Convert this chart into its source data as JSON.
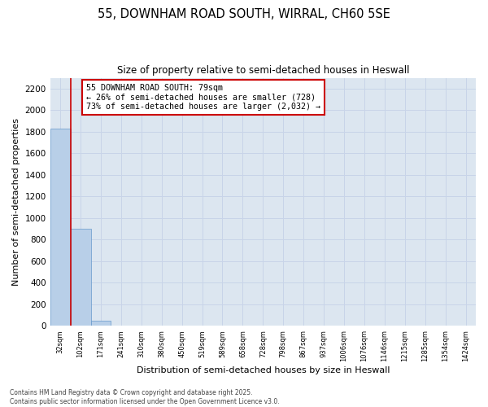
{
  "title_line1": "55, DOWNHAM ROAD SOUTH, WIRRAL, CH60 5SE",
  "title_line2": "Size of property relative to semi-detached houses in Heswall",
  "xlabel": "Distribution of semi-detached houses by size in Heswall",
  "ylabel": "Number of semi-detached properties",
  "bar_labels": [
    "32sqm",
    "102sqm",
    "171sqm",
    "241sqm",
    "310sqm",
    "380sqm",
    "450sqm",
    "519sqm",
    "589sqm",
    "658sqm",
    "728sqm",
    "798sqm",
    "867sqm",
    "937sqm",
    "1006sqm",
    "1076sqm",
    "1146sqm",
    "1215sqm",
    "1285sqm",
    "1354sqm",
    "1424sqm"
  ],
  "bar_values": [
    1830,
    900,
    50,
    5,
    2,
    1,
    1,
    0,
    0,
    0,
    0,
    0,
    0,
    0,
    0,
    0,
    0,
    0,
    0,
    0,
    0
  ],
  "bar_color": "#b8cfe8",
  "bar_edge_color": "#6699cc",
  "vline_color": "#cc0000",
  "vline_x": 0.5,
  "annotation_title": "55 DOWNHAM ROAD SOUTH: 79sqm",
  "annotation_line2": "← 26% of semi-detached houses are smaller (728)",
  "annotation_line3": "73% of semi-detached houses are larger (2,032) →",
  "annotation_box_color": "#ffffff",
  "annotation_box_edge": "#cc0000",
  "ylim": [
    0,
    2300
  ],
  "yticks": [
    0,
    200,
    400,
    600,
    800,
    1000,
    1200,
    1400,
    1600,
    1800,
    2000,
    2200
  ],
  "grid_color": "#c8d4e8",
  "bg_color": "#dce6f0",
  "footer_line1": "Contains HM Land Registry data © Crown copyright and database right 2025.",
  "footer_line2": "Contains public sector information licensed under the Open Government Licence v3.0."
}
